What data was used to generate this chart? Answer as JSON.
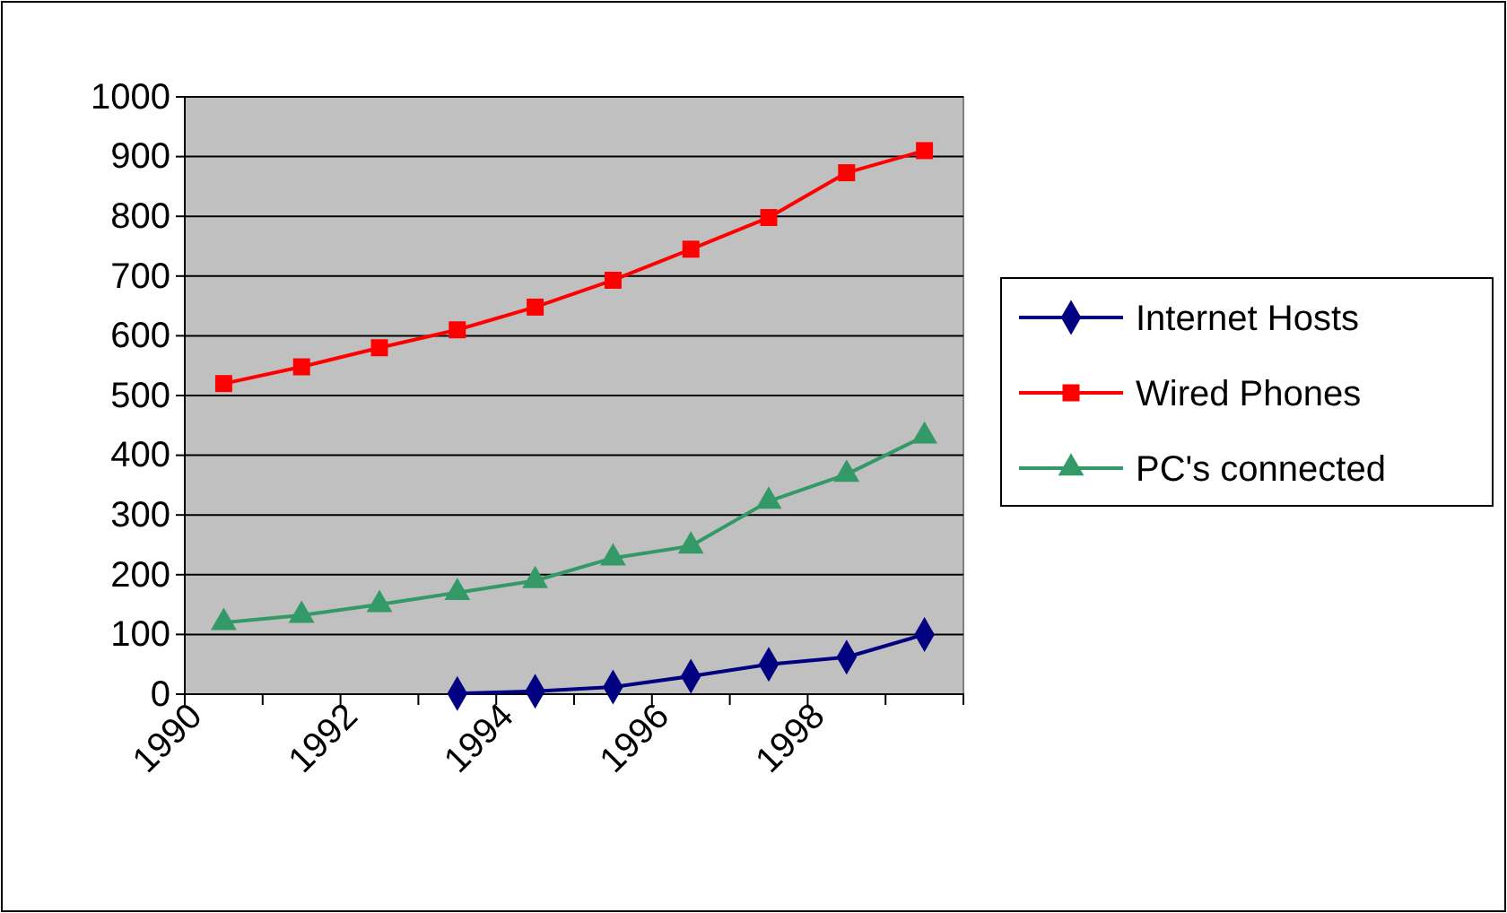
{
  "chart_data": {
    "type": "line",
    "x": [
      1990.5,
      1991.5,
      1992.5,
      1993.5,
      1994.5,
      1995.5,
      1996.5,
      1997.5,
      1998.5,
      1999.5
    ],
    "xlim": [
      1990,
      2000
    ],
    "xticks": [
      1990,
      {
        "value": 1991,
        "label": null
      },
      1992,
      {
        "value": 1993,
        "label": null
      },
      1994,
      {
        "value": 1995,
        "label": null
      },
      1996,
      {
        "value": 1997,
        "label": null
      },
      1998,
      {
        "value": 1999,
        "label": null
      },
      {
        "value": 2000,
        "label": null
      }
    ],
    "ylim": [
      0,
      1000
    ],
    "yticks": [
      0,
      100,
      200,
      300,
      400,
      500,
      600,
      700,
      800,
      900,
      1000
    ],
    "grid": "y",
    "legend": "right",
    "series": [
      {
        "name": "Internet Hosts",
        "color": "#000080",
        "marker": "diamond",
        "values": [
          null,
          null,
          null,
          1,
          5,
          12,
          30,
          50,
          62,
          100
        ]
      },
      {
        "name": "Wired Phones",
        "color": "#ff0000",
        "marker": "square",
        "values": [
          520,
          548,
          580,
          610,
          648,
          693,
          745,
          798,
          873,
          910
        ]
      },
      {
        "name": "PC's connected",
        "color": "#339966",
        "marker": "triangle",
        "values": [
          120,
          132,
          150,
          170,
          190,
          228,
          248,
          323,
          368,
          432
        ]
      }
    ]
  }
}
